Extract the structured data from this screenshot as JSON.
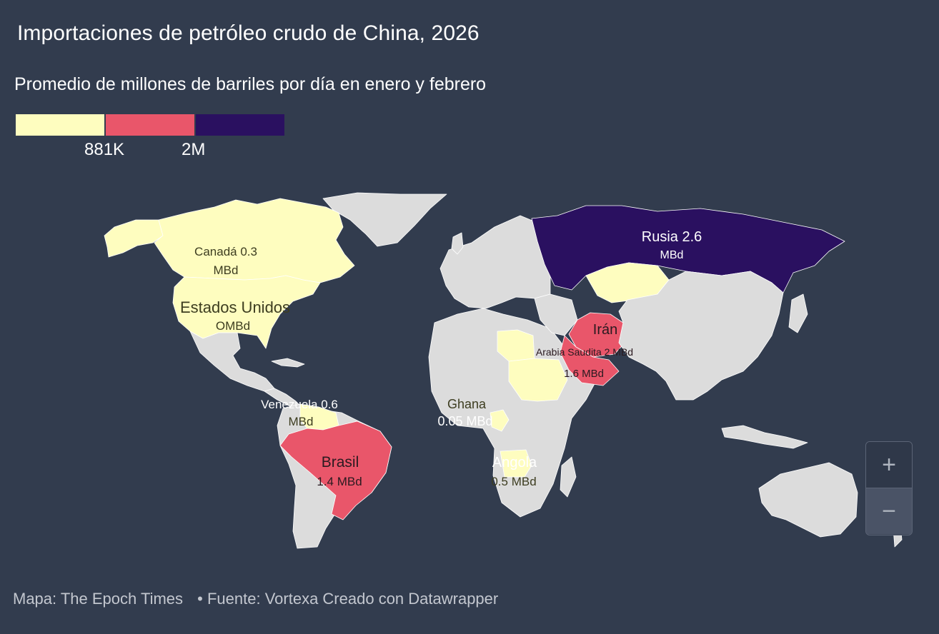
{
  "title": "Importaciones de petróleo crudo de China, 2026",
  "subtitle": "Promedio de millones de barriles por día en enero y febrero",
  "legend": {
    "colors": [
      "#fefdbf",
      "#e9566a",
      "#2a1060"
    ],
    "ticks": [
      "881K",
      "2M"
    ]
  },
  "map_labels": {
    "canada": [
      "Canadá 0.3",
      "MBd"
    ],
    "usa": [
      "Estados Unidos",
      "OMBd"
    ],
    "venezuela": [
      "Venezuela 0.6",
      "MBd"
    ],
    "brasil": [
      "Brasil",
      "1.4 MBd"
    ],
    "ghana": [
      "Ghana",
      "0.05 MBd"
    ],
    "angola": [
      "Angola",
      "0.5 MBd"
    ],
    "russia": [
      "Rusia 2.6",
      "MBd"
    ],
    "iran": "Irán",
    "saudi": [
      "Arabia Saudita 2 MBd",
      "1.6 MBd"
    ]
  },
  "colors": {
    "land": "#dcdcdc",
    "low": "#fefdbf",
    "mid": "#e9566a",
    "high": "#2a1060",
    "background": "#323c4e"
  },
  "zoom": {
    "plus": "+",
    "minus": "−"
  },
  "footer": {
    "map_credit": "Mapa: The Epoch Times",
    "source": "• Fuente: Vortexa Creado con Datawrapper"
  }
}
